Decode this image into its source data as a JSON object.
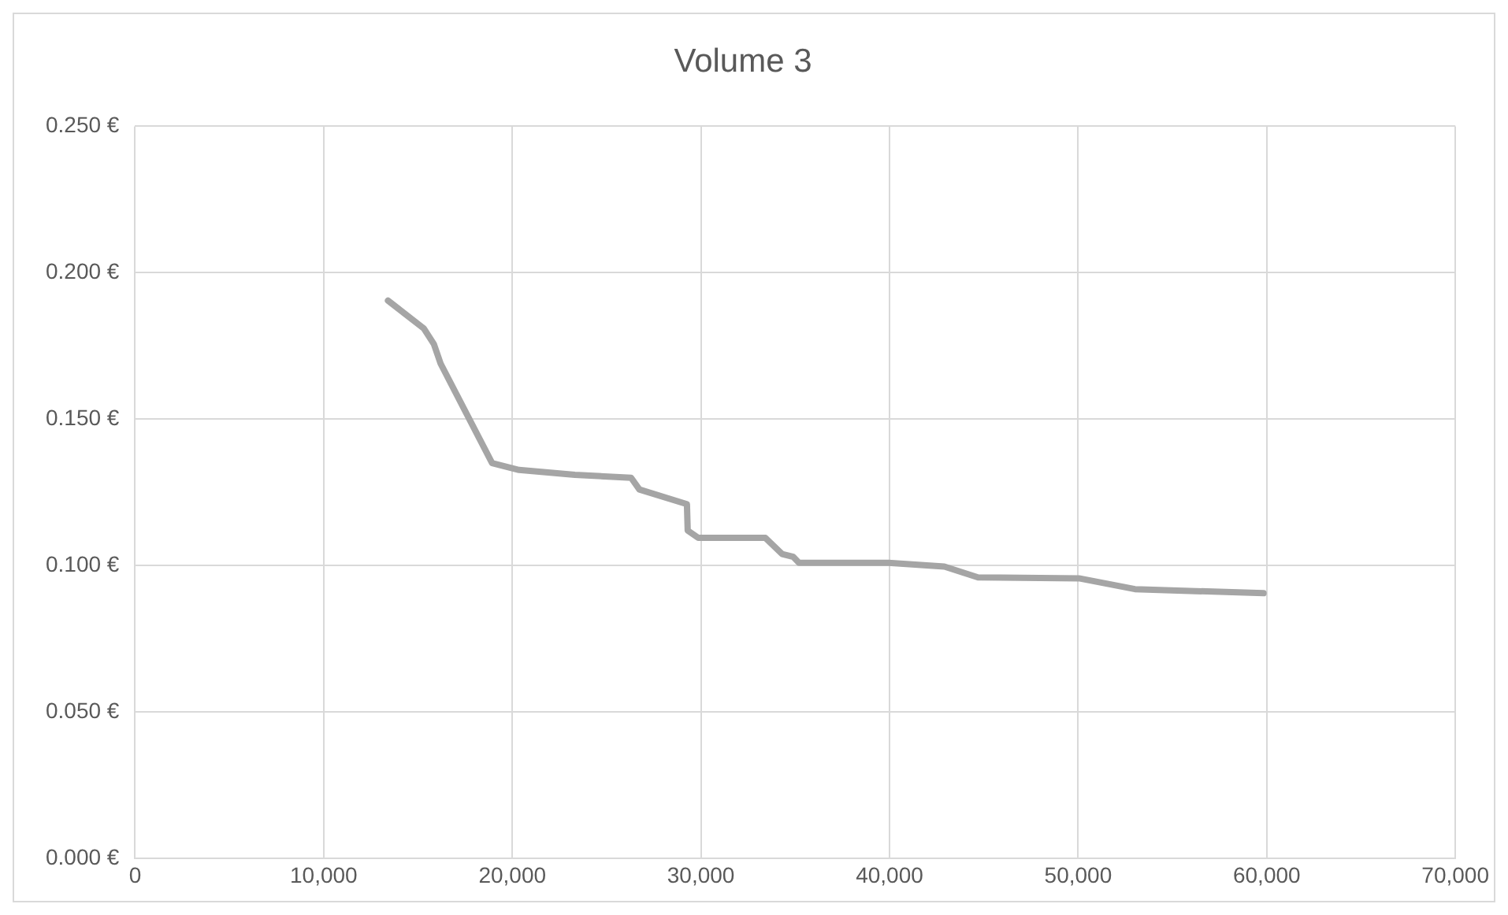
{
  "chart_data": {
    "type": "line",
    "title": "Volume 3",
    "x": [
      13410,
      15310,
      15840,
      16200,
      18930,
      20360,
      23320,
      26300,
      26740,
      29260,
      29300,
      29860,
      33420,
      34310,
      34900,
      35200,
      39950,
      42910,
      44690,
      50040,
      53010,
      59830
    ],
    "series": [
      {
        "color": "#a5a5a5",
        "values": [
          0.1905,
          0.181,
          0.1757,
          0.169,
          0.135,
          0.1327,
          0.131,
          0.13,
          0.126,
          0.121,
          0.112,
          0.1095,
          0.1095,
          0.104,
          0.103,
          0.101,
          0.101,
          0.0997,
          0.096,
          0.0957,
          0.092,
          0.0906
        ]
      }
    ],
    "xlim": [
      0,
      70000
    ],
    "xticks": [
      {
        "value": 0,
        "label": "0"
      },
      {
        "value": 10000,
        "label": "10,000"
      },
      {
        "value": 20000,
        "label": "20,000"
      },
      {
        "value": 30000,
        "label": "30,000"
      },
      {
        "value": 40000,
        "label": "40,000"
      },
      {
        "value": 50000,
        "label": "50,000"
      },
      {
        "value": 60000,
        "label": "60,000"
      },
      {
        "value": 70000,
        "label": "70,000"
      }
    ],
    "ylim": [
      0,
      0.25
    ],
    "yticks": [
      {
        "value": 0,
        "label": "0.000 €"
      },
      {
        "value": 0.05,
        "label": "0.050 €"
      },
      {
        "value": 0.1,
        "label": "0.100 €"
      },
      {
        "value": 0.15,
        "label": "0.150 €"
      },
      {
        "value": 0.2,
        "label": "0.200 €"
      },
      {
        "value": 0.25,
        "label": "0.250 €"
      }
    ],
    "grid": true,
    "legend": false,
    "marker": "none",
    "line_style": "solid"
  }
}
